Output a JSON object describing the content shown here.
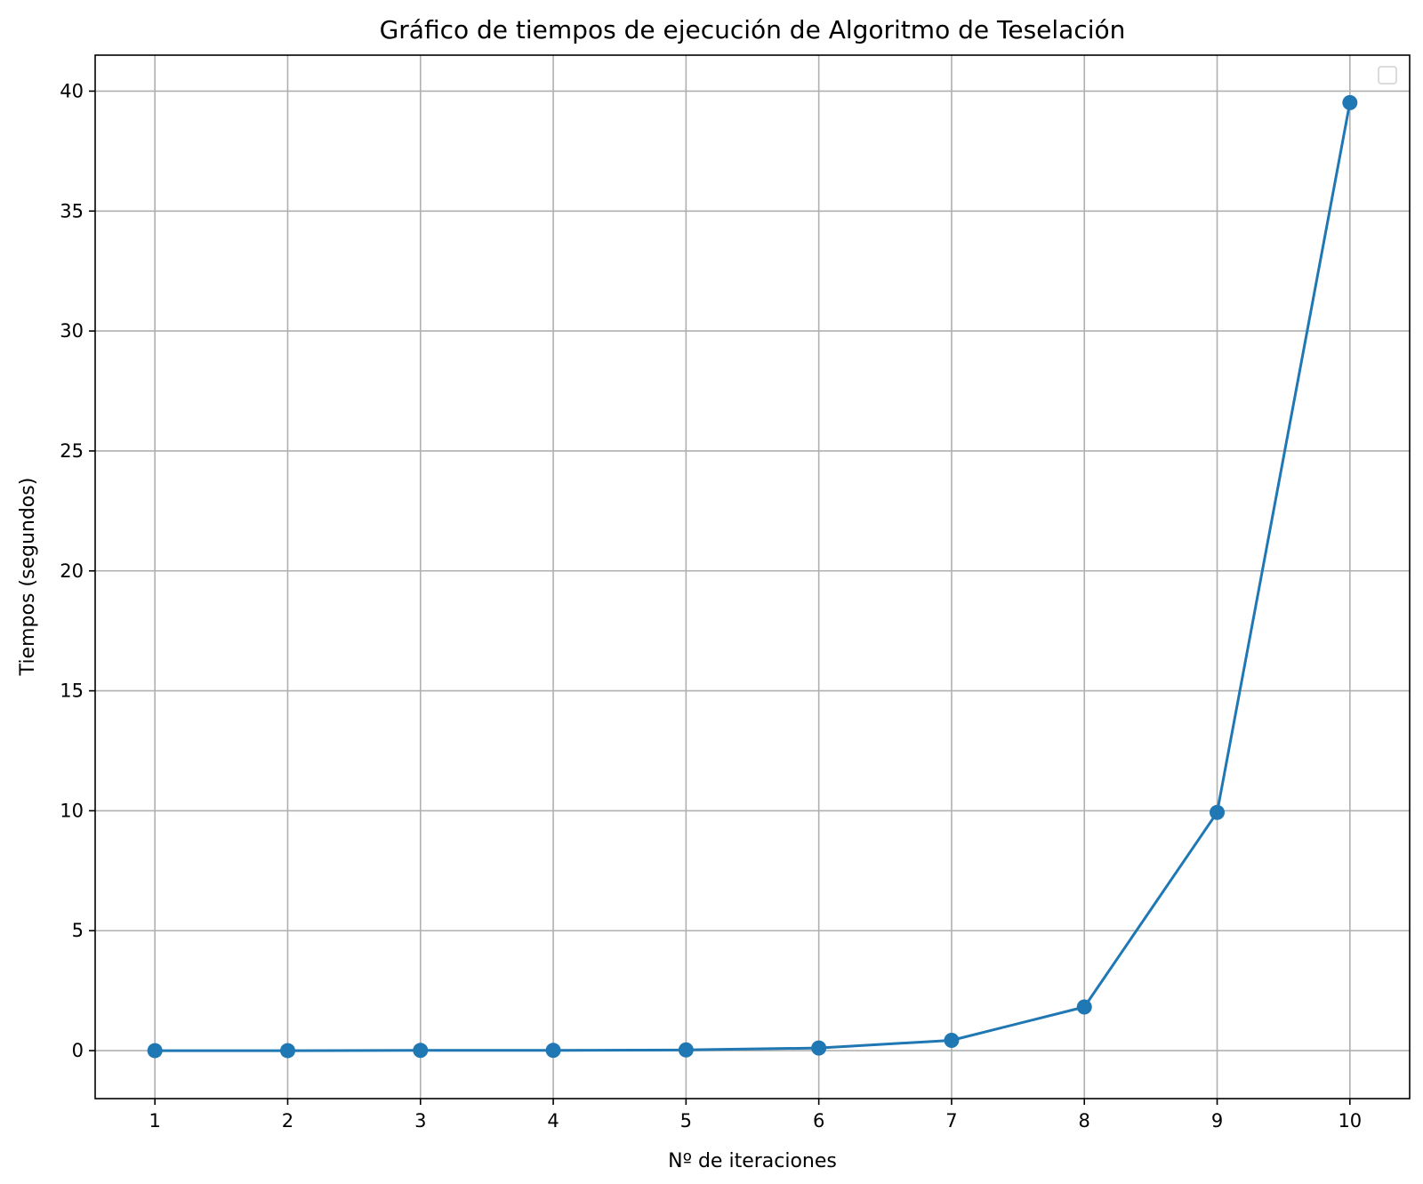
{
  "chart_data": {
    "type": "line",
    "title": "Gráfico de tiempos de ejecución de Algoritmo de Teselación",
    "xlabel": "Nº de iteraciones",
    "ylabel": "Tiempos (segundos)",
    "x": [
      1,
      2,
      3,
      4,
      5,
      6,
      7,
      8,
      9,
      10
    ],
    "series": [
      {
        "values": [
          0.0,
          0.0,
          0.01,
          0.01,
          0.03,
          0.11,
          0.43,
          1.82,
          9.93,
          39.52
        ],
        "color": "#1f77b4",
        "marker": "circle"
      }
    ],
    "xticks": [
      "1",
      "2",
      "3",
      "4",
      "5",
      "6",
      "7",
      "8",
      "9",
      "10"
    ],
    "yticks": [
      "0",
      "5",
      "10",
      "15",
      "20",
      "25",
      "30",
      "35",
      "40"
    ],
    "xlim": [
      0.55,
      10.45
    ],
    "ylim": [
      -2.0,
      41.5
    ],
    "grid": true,
    "legend": "upper right, empty"
  }
}
